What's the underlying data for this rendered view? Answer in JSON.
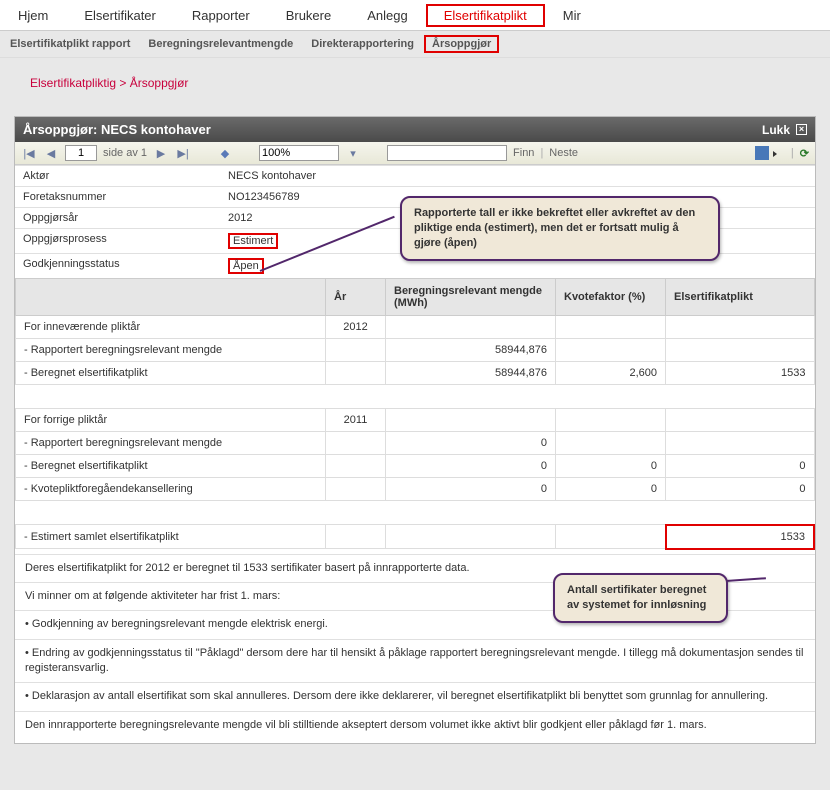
{
  "mainNav": {
    "items": [
      "Hjem",
      "Elsertifikater",
      "Rapporter",
      "Brukere",
      "Anlegg",
      "Elsertifikatplikt",
      "Mir"
    ],
    "highlightedIndex": 5
  },
  "subNav": {
    "items": [
      "Elsertifikatplikt rapport",
      "Beregningsrelevantmengde",
      "Direkterapportering",
      "Årsoppgjør"
    ],
    "highlightedIndex": 3
  },
  "breadcrumb": {
    "part1": "Elsertifikatpliktig",
    "sep": " > ",
    "part2": "Årsoppgjør"
  },
  "panel": {
    "title": "Årsoppgjør: NECS kontohaver",
    "closeLabel": "Lukk"
  },
  "toolbar": {
    "page": "1",
    "pageLabel": "side av 1",
    "zoom": "100%",
    "findLabel": "Finn",
    "nextLabel": "Neste"
  },
  "info": {
    "rows": [
      {
        "label": "Aktør",
        "value": "NECS kontohaver",
        "red": false
      },
      {
        "label": "Foretaksnummer",
        "value": "NO123456789",
        "red": false
      },
      {
        "label": "Oppgjørsår",
        "value": "2012",
        "red": false
      },
      {
        "label": "Oppgjørsprosess",
        "value": "Estimert",
        "red": true
      },
      {
        "label": "Godkjenningsstatus",
        "value": "Åpen",
        "red": true
      }
    ]
  },
  "dataTable": {
    "headers": [
      "",
      "År",
      "Beregningsrelevant mengde (MWh)",
      "Kvotefaktor (%)",
      "Elsertifikatplikt"
    ],
    "rows": [
      {
        "cells": [
          "For inneværende pliktår",
          "2012",
          "",
          "",
          ""
        ],
        "align": [
          "l",
          "c",
          "r",
          "r",
          "r"
        ]
      },
      {
        "cells": [
          "- Rapportert beregningsrelevant mengde",
          "",
          "58944,876",
          "",
          ""
        ],
        "align": [
          "l",
          "c",
          "r",
          "r",
          "r"
        ]
      },
      {
        "cells": [
          "- Beregnet elsertifikatplikt",
          "",
          "58944,876",
          "2,600",
          "1533"
        ],
        "align": [
          "l",
          "c",
          "r",
          "r",
          "r"
        ]
      },
      {
        "cells": [
          "",
          "",
          "",
          "",
          ""
        ],
        "spacer": true
      },
      {
        "cells": [
          "For forrige pliktår",
          "2011",
          "",
          "",
          ""
        ],
        "align": [
          "l",
          "c",
          "r",
          "r",
          "r"
        ]
      },
      {
        "cells": [
          "- Rapportert beregningsrelevant mengde",
          "",
          "0",
          "",
          ""
        ],
        "align": [
          "l",
          "c",
          "r",
          "r",
          "r"
        ]
      },
      {
        "cells": [
          "- Beregnet elsertifikatplikt",
          "",
          "0",
          "0",
          "0"
        ],
        "align": [
          "l",
          "c",
          "r",
          "r",
          "r"
        ]
      },
      {
        "cells": [
          "- Kvotepliktforegåendekansellering",
          "",
          "0",
          "0",
          "0"
        ],
        "align": [
          "l",
          "c",
          "r",
          "r",
          "r"
        ]
      },
      {
        "cells": [
          "",
          "",
          "",
          "",
          ""
        ],
        "spacer": true
      },
      {
        "cells": [
          "- Estimert samlet elsertifikatplikt",
          "",
          "",
          "",
          "1533"
        ],
        "align": [
          "l",
          "c",
          "r",
          "r",
          "r"
        ],
        "redLast": true
      }
    ],
    "colWidths": [
      "310px",
      "60px",
      "170px",
      "110px",
      "auto"
    ]
  },
  "footnotes": [
    "Deres elsertifikatplikt for 2012  er beregnet til 1533 sertifikater basert på innrapporterte data.",
    "Vi minner om at følgende aktiviteter har frist 1. mars:",
    "• Godkjenning av beregningsrelevant mengde elektrisk energi.",
    "• Endring av godkjenningsstatus til \"Påklagd\" dersom dere har til hensikt å påklage rapportert beregningsrelevant mengde. I tillegg må dokumentasjon sendes til registeransvarlig.",
    "• Deklarasjon av antall elsertifikat som skal annulleres. Dersom dere ikke deklarerer, vil beregnet elsertifikatplikt bli benyttet som grunnlag for annullering.",
    "Den innrapporterte beregningsrelevante mengde vil bli stilltiende akseptert dersom volumet ikke aktivt blir godkjent eller påklagd før 1. mars."
  ],
  "callouts": {
    "c1": "Rapporterte tall er ikke bekreftet eller avkreftet av den pliktige enda (estimert), men det er fortsatt mulig å gjøre (åpen)",
    "c2": "Antall sertifikater beregnet av systemet for innløsning"
  },
  "colors": {
    "highlight": "#e00000",
    "breadcrumb": "#c8003c",
    "calloutBorder": "#52276b",
    "calloutBg": "#f0e8d8"
  }
}
